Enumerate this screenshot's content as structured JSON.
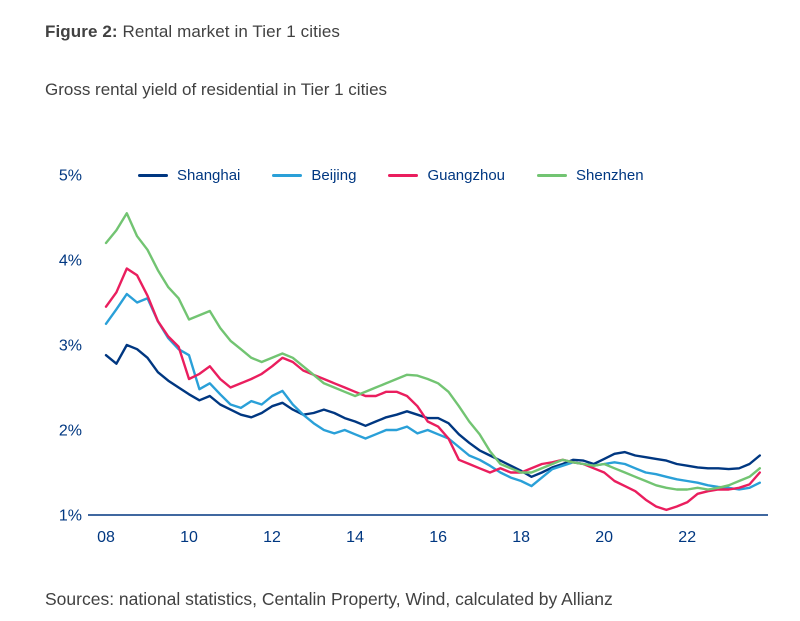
{
  "header": {
    "figure_label": "Figure 2:",
    "figure_title": "Rental market in Tier 1 cities"
  },
  "footer": {
    "source": "Sources: national statistics, Centalin Property, Wind, calculated by Allianz"
  },
  "chart_data": {
    "type": "line",
    "title": "Gross rental yield of residential in Tier 1 cities",
    "xlabel": "",
    "ylabel": "",
    "grid": false,
    "legend_position": "top",
    "axis_color": "#003781",
    "label_color": "#003781",
    "x_start": 2008,
    "x_step": 0.25,
    "xlim": [
      2008,
      2023.85
    ],
    "ylim": [
      1,
      5
    ],
    "yticks": [
      {
        "value": 1,
        "label": "1%"
      },
      {
        "value": 2,
        "label": "2%"
      },
      {
        "value": 3,
        "label": "3%"
      },
      {
        "value": 4,
        "label": "4%"
      },
      {
        "value": 5,
        "label": "5%"
      }
    ],
    "xticks": [
      {
        "value": 2008,
        "label": "08"
      },
      {
        "value": 2010,
        "label": "10"
      },
      {
        "value": 2012,
        "label": "12"
      },
      {
        "value": 2014,
        "label": "14"
      },
      {
        "value": 2016,
        "label": "16"
      },
      {
        "value": 2018,
        "label": "18"
      },
      {
        "value": 2020,
        "label": "20"
      },
      {
        "value": 2022,
        "label": "22"
      }
    ],
    "series": [
      {
        "name": "Shanghai",
        "color": "#003781",
        "values": [
          2.88,
          2.78,
          3.0,
          2.95,
          2.85,
          2.68,
          2.58,
          2.5,
          2.42,
          2.35,
          2.4,
          2.3,
          2.24,
          2.18,
          2.15,
          2.2,
          2.28,
          2.32,
          2.24,
          2.18,
          2.2,
          2.24,
          2.2,
          2.14,
          2.1,
          2.05,
          2.1,
          2.15,
          2.18,
          2.22,
          2.18,
          2.14,
          2.14,
          2.08,
          1.95,
          1.85,
          1.76,
          1.7,
          1.64,
          1.58,
          1.52,
          1.45,
          1.5,
          1.56,
          1.6,
          1.65,
          1.64,
          1.6,
          1.66,
          1.72,
          1.74,
          1.7,
          1.68,
          1.66,
          1.64,
          1.6,
          1.58,
          1.56,
          1.55,
          1.55,
          1.54,
          1.55,
          1.6,
          1.7
        ]
      },
      {
        "name": "Beijing",
        "color": "#2aa0d8",
        "values": [
          3.25,
          3.42,
          3.6,
          3.5,
          3.55,
          3.28,
          3.08,
          2.95,
          2.88,
          2.48,
          2.55,
          2.42,
          2.3,
          2.26,
          2.34,
          2.3,
          2.4,
          2.46,
          2.3,
          2.18,
          2.08,
          2.0,
          1.96,
          2.0,
          1.95,
          1.9,
          1.95,
          2.0,
          2.0,
          2.04,
          1.96,
          2.0,
          1.95,
          1.9,
          1.8,
          1.7,
          1.65,
          1.58,
          1.5,
          1.44,
          1.4,
          1.34,
          1.44,
          1.54,
          1.58,
          1.62,
          1.6,
          1.58,
          1.6,
          1.62,
          1.6,
          1.55,
          1.5,
          1.48,
          1.45,
          1.42,
          1.4,
          1.38,
          1.35,
          1.33,
          1.32,
          1.3,
          1.32,
          1.38
        ]
      },
      {
        "name": "Guangzhou",
        "color": "#ea1e5e",
        "values": [
          3.45,
          3.62,
          3.9,
          3.82,
          3.58,
          3.28,
          3.1,
          2.98,
          2.6,
          2.66,
          2.75,
          2.6,
          2.5,
          2.55,
          2.6,
          2.66,
          2.75,
          2.85,
          2.8,
          2.7,
          2.65,
          2.6,
          2.55,
          2.5,
          2.45,
          2.4,
          2.4,
          2.45,
          2.45,
          2.4,
          2.28,
          2.1,
          2.04,
          1.9,
          1.65,
          1.6,
          1.55,
          1.5,
          1.55,
          1.5,
          1.5,
          1.55,
          1.6,
          1.62,
          1.65,
          1.62,
          1.6,
          1.55,
          1.5,
          1.4,
          1.34,
          1.28,
          1.18,
          1.1,
          1.06,
          1.1,
          1.15,
          1.25,
          1.28,
          1.3,
          1.3,
          1.32,
          1.36,
          1.5
        ]
      },
      {
        "name": "Shenzhen",
        "color": "#72c472",
        "values": [
          4.2,
          4.35,
          4.55,
          4.28,
          4.12,
          3.88,
          3.68,
          3.55,
          3.3,
          3.35,
          3.4,
          3.2,
          3.05,
          2.95,
          2.85,
          2.8,
          2.85,
          2.9,
          2.85,
          2.75,
          2.65,
          2.55,
          2.5,
          2.45,
          2.4,
          2.45,
          2.5,
          2.55,
          2.6,
          2.65,
          2.64,
          2.6,
          2.55,
          2.45,
          2.28,
          2.1,
          1.95,
          1.75,
          1.6,
          1.55,
          1.5,
          1.5,
          1.55,
          1.6,
          1.65,
          1.62,
          1.6,
          1.58,
          1.6,
          1.55,
          1.5,
          1.45,
          1.4,
          1.35,
          1.32,
          1.3,
          1.3,
          1.32,
          1.3,
          1.32,
          1.35,
          1.4,
          1.45,
          1.55
        ]
      }
    ]
  }
}
